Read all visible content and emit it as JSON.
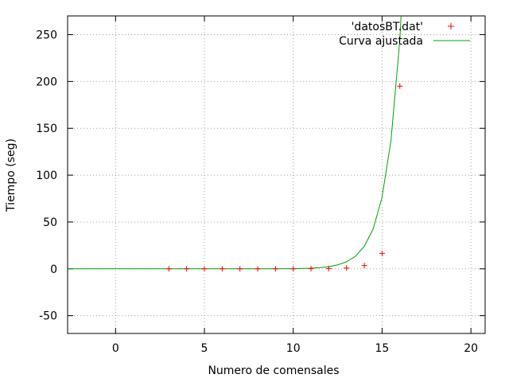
{
  "chart_data": {
    "type": "scatter",
    "title": "",
    "xlabel": "Numero de comensales",
    "ylabel": "Tiempo (seg)",
    "xlim": [
      -2.7,
      20.8
    ],
    "ylim": [
      -69,
      270
    ],
    "xticks": [
      0,
      5,
      10,
      15,
      20
    ],
    "yticks": [
      -50,
      0,
      50,
      100,
      150,
      200,
      250
    ],
    "grid": true,
    "legend_position": "top-right",
    "colors": {
      "points": "#ff0000",
      "curve": "#00a000",
      "grid": "#a0a0a0",
      "axis": "#000000"
    },
    "series": [
      {
        "name": "'datosBT.dat'",
        "type": "scatter",
        "marker": "plus",
        "x": [
          3,
          4,
          5,
          6,
          7,
          8,
          9,
          10,
          11,
          12,
          13,
          14,
          15,
          16
        ],
        "y": [
          0,
          0,
          0,
          0,
          0,
          0,
          0,
          0,
          0.2,
          0.3,
          0.8,
          3.5,
          16.5,
          195
        ]
      },
      {
        "name": "Curva ajustada",
        "type": "line",
        "x": [
          -2.7,
          8.5,
          9,
          9.5,
          10,
          10.5,
          11,
          11.5,
          12,
          12.5,
          13,
          13.5,
          14,
          14.5,
          15,
          15.5,
          16,
          16.5
        ],
        "y": [
          0,
          0.03,
          0.06,
          0.12,
          0.2,
          0.4,
          0.7,
          1.3,
          2.3,
          4.2,
          7.5,
          13.4,
          24,
          42.8,
          76.5,
          137,
          245,
          438
        ]
      }
    ]
  }
}
